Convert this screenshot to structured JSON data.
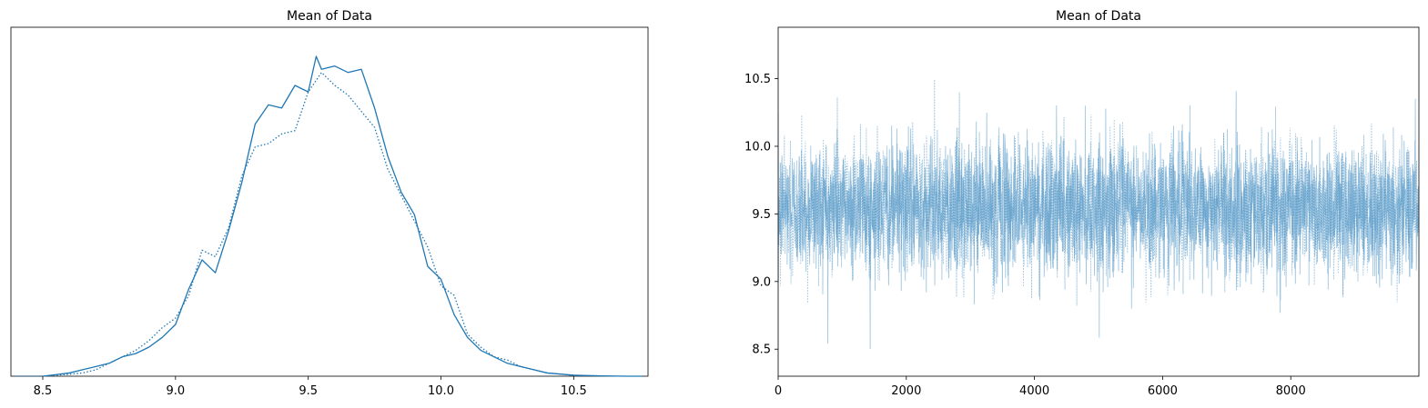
{
  "chart_data": [
    {
      "type": "line",
      "title": "Mean of Data",
      "xlabel": "",
      "ylabel": "",
      "xlim": [
        8.38,
        10.78
      ],
      "xticks": [
        8.5,
        9.0,
        9.5,
        10.0,
        10.5
      ],
      "xtick_labels": [
        "8.5",
        "9.0",
        "9.5",
        "10.0",
        "10.5"
      ],
      "y_ticks_shown": false,
      "ylim": [
        0,
        1.08
      ],
      "color": "#1f77b4",
      "series": [
        {
          "line_style": "solid",
          "x": [
            8.5,
            8.55,
            8.6,
            8.65,
            8.7,
            8.75,
            8.8,
            8.85,
            8.9,
            8.95,
            9.0,
            9.05,
            9.1,
            9.15,
            9.2,
            9.25,
            9.3,
            9.35,
            9.4,
            9.45,
            9.5,
            9.53,
            9.55,
            9.6,
            9.65,
            9.7,
            9.75,
            9.8,
            9.85,
            9.9,
            9.95,
            10.0,
            10.05,
            10.1,
            10.15,
            10.2,
            10.25,
            10.3,
            10.35,
            10.4,
            10.5,
            10.6,
            10.7,
            10.76
          ],
          "y": [
            0.0,
            0.005,
            0.01,
            0.02,
            0.03,
            0.04,
            0.06,
            0.07,
            0.09,
            0.12,
            0.16,
            0.27,
            0.36,
            0.32,
            0.45,
            0.6,
            0.78,
            0.84,
            0.83,
            0.9,
            0.88,
            0.99,
            0.95,
            0.96,
            0.94,
            0.95,
            0.83,
            0.68,
            0.57,
            0.5,
            0.34,
            0.3,
            0.19,
            0.12,
            0.08,
            0.06,
            0.04,
            0.03,
            0.02,
            0.01,
            0.003,
            0.001,
            0.0,
            0.0
          ]
        },
        {
          "line_style": "dotted",
          "x": [
            8.4,
            8.5,
            8.55,
            8.6,
            8.65,
            8.7,
            8.75,
            8.8,
            8.85,
            8.9,
            8.95,
            9.0,
            9.05,
            9.1,
            9.15,
            9.2,
            9.25,
            9.3,
            9.35,
            9.4,
            9.45,
            9.5,
            9.55,
            9.6,
            9.65,
            9.7,
            9.75,
            9.8,
            9.85,
            9.9,
            9.95,
            10.0,
            10.05,
            10.1,
            10.15,
            10.2,
            10.25,
            10.3,
            10.35,
            10.4,
            10.5,
            10.6
          ],
          "y": [
            0.0,
            0.0,
            0.003,
            0.006,
            0.01,
            0.02,
            0.04,
            0.06,
            0.08,
            0.11,
            0.15,
            0.18,
            0.25,
            0.39,
            0.37,
            0.46,
            0.62,
            0.71,
            0.72,
            0.75,
            0.76,
            0.88,
            0.94,
            0.9,
            0.87,
            0.82,
            0.77,
            0.64,
            0.56,
            0.48,
            0.4,
            0.28,
            0.25,
            0.13,
            0.09,
            0.06,
            0.05,
            0.03,
            0.02,
            0.01,
            0.003,
            0.001
          ]
        }
      ]
    },
    {
      "type": "line",
      "title": "Mean of Data",
      "xlabel": "",
      "ylabel": "",
      "xlim": [
        0,
        10000
      ],
      "ylim": [
        8.3,
        10.88
      ],
      "xticks": [
        0,
        2000,
        4000,
        6000,
        8000
      ],
      "xtick_labels": [
        "0",
        "2000",
        "4000",
        "6000",
        "8000"
      ],
      "yticks": [
        8.5,
        9.0,
        9.5,
        10.0,
        10.5
      ],
      "ytick_labels": [
        "8.5",
        "9.0",
        "9.5",
        "10.0",
        "10.5"
      ],
      "color": "#1f77b4",
      "series": [
        {
          "line_style": "solid",
          "mean": 9.55,
          "sd": 0.25,
          "n_draws": 10000
        },
        {
          "line_style": "dotted",
          "mean": 9.55,
          "sd": 0.25,
          "n_draws": 10000
        }
      ]
    }
  ]
}
